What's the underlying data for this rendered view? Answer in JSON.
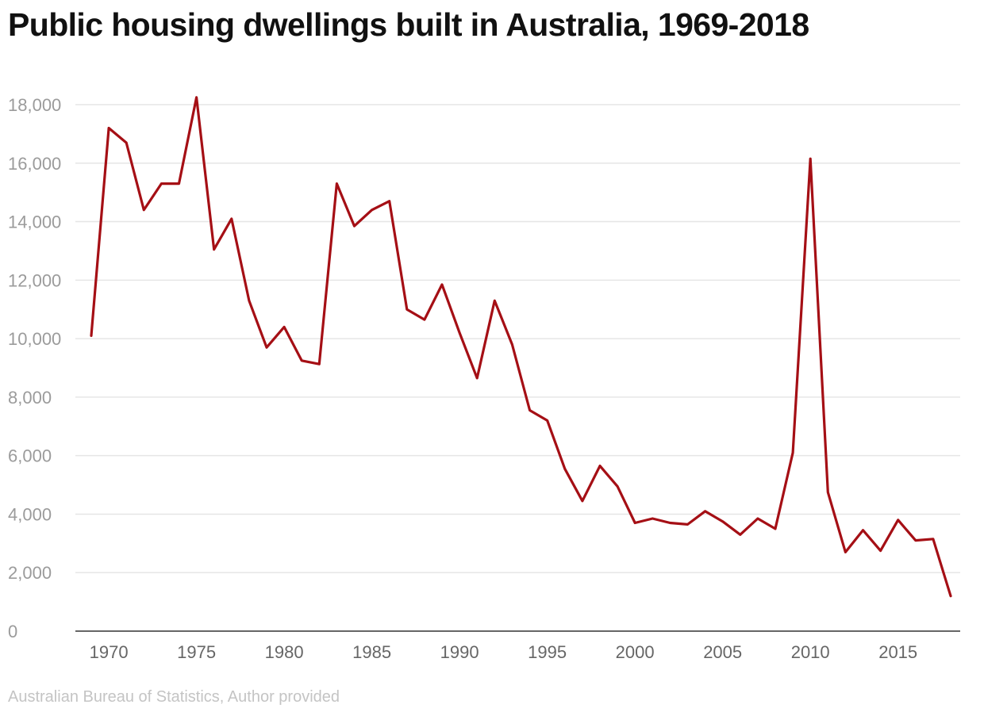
{
  "chart_data": {
    "type": "line",
    "title": "Public housing dwellings built in Australia, 1969-2018",
    "source": "Australian Bureau of Statistics, Author provided",
    "xlabel": "",
    "ylabel": "",
    "x_range": [
      1969,
      2018
    ],
    "ylim": [
      0,
      18000
    ],
    "y_ticks": [
      0,
      2000,
      4000,
      6000,
      8000,
      10000,
      12000,
      14000,
      16000,
      18000
    ],
    "y_tick_labels": [
      "0",
      "2,000",
      "4,000",
      "6,000",
      "8,000",
      "10,000",
      "12,000",
      "14,000",
      "16,000",
      "18,000"
    ],
    "x_ticks": [
      1970,
      1975,
      1980,
      1985,
      1990,
      1995,
      2000,
      2005,
      2010,
      2015
    ],
    "x_tick_labels": [
      "1970",
      "1975",
      "1980",
      "1985",
      "1990",
      "1995",
      "2000",
      "2005",
      "2010",
      "2015"
    ],
    "grid": "horizontal",
    "legend": "none",
    "line_color": "#a50f15",
    "grid_color": "#e6e6e6",
    "axis_color": "#333333",
    "y_tick_color": "#9b9b9b",
    "x_tick_color": "#666666",
    "x": [
      1969,
      1970,
      1971,
      1972,
      1973,
      1974,
      1975,
      1976,
      1977,
      1978,
      1979,
      1980,
      1981,
      1982,
      1983,
      1984,
      1985,
      1986,
      1987,
      1988,
      1989,
      1990,
      1991,
      1992,
      1993,
      1994,
      1995,
      1996,
      1997,
      1998,
      1999,
      2000,
      2001,
      2002,
      2003,
      2004,
      2005,
      2006,
      2007,
      2008,
      2009,
      2010,
      2011,
      2012,
      2013,
      2014,
      2015,
      2016,
      2017,
      2018
    ],
    "series": [
      {
        "values": [
          10100,
          17200,
          16700,
          14400,
          15300,
          15300,
          18250,
          13050,
          14100,
          11300,
          9700,
          10400,
          9250,
          9130,
          15300,
          13850,
          14400,
          14700,
          11000,
          10650,
          11850,
          10200,
          8650,
          11300,
          9800,
          7550,
          7200,
          5550,
          4450,
          5650,
          4950,
          3700,
          3850,
          3700,
          3650,
          4100,
          3750,
          3300,
          3850,
          3500,
          6100,
          16150,
          4750,
          2700,
          3450,
          2750,
          3800,
          3100,
          3150,
          1200
        ]
      }
    ]
  }
}
